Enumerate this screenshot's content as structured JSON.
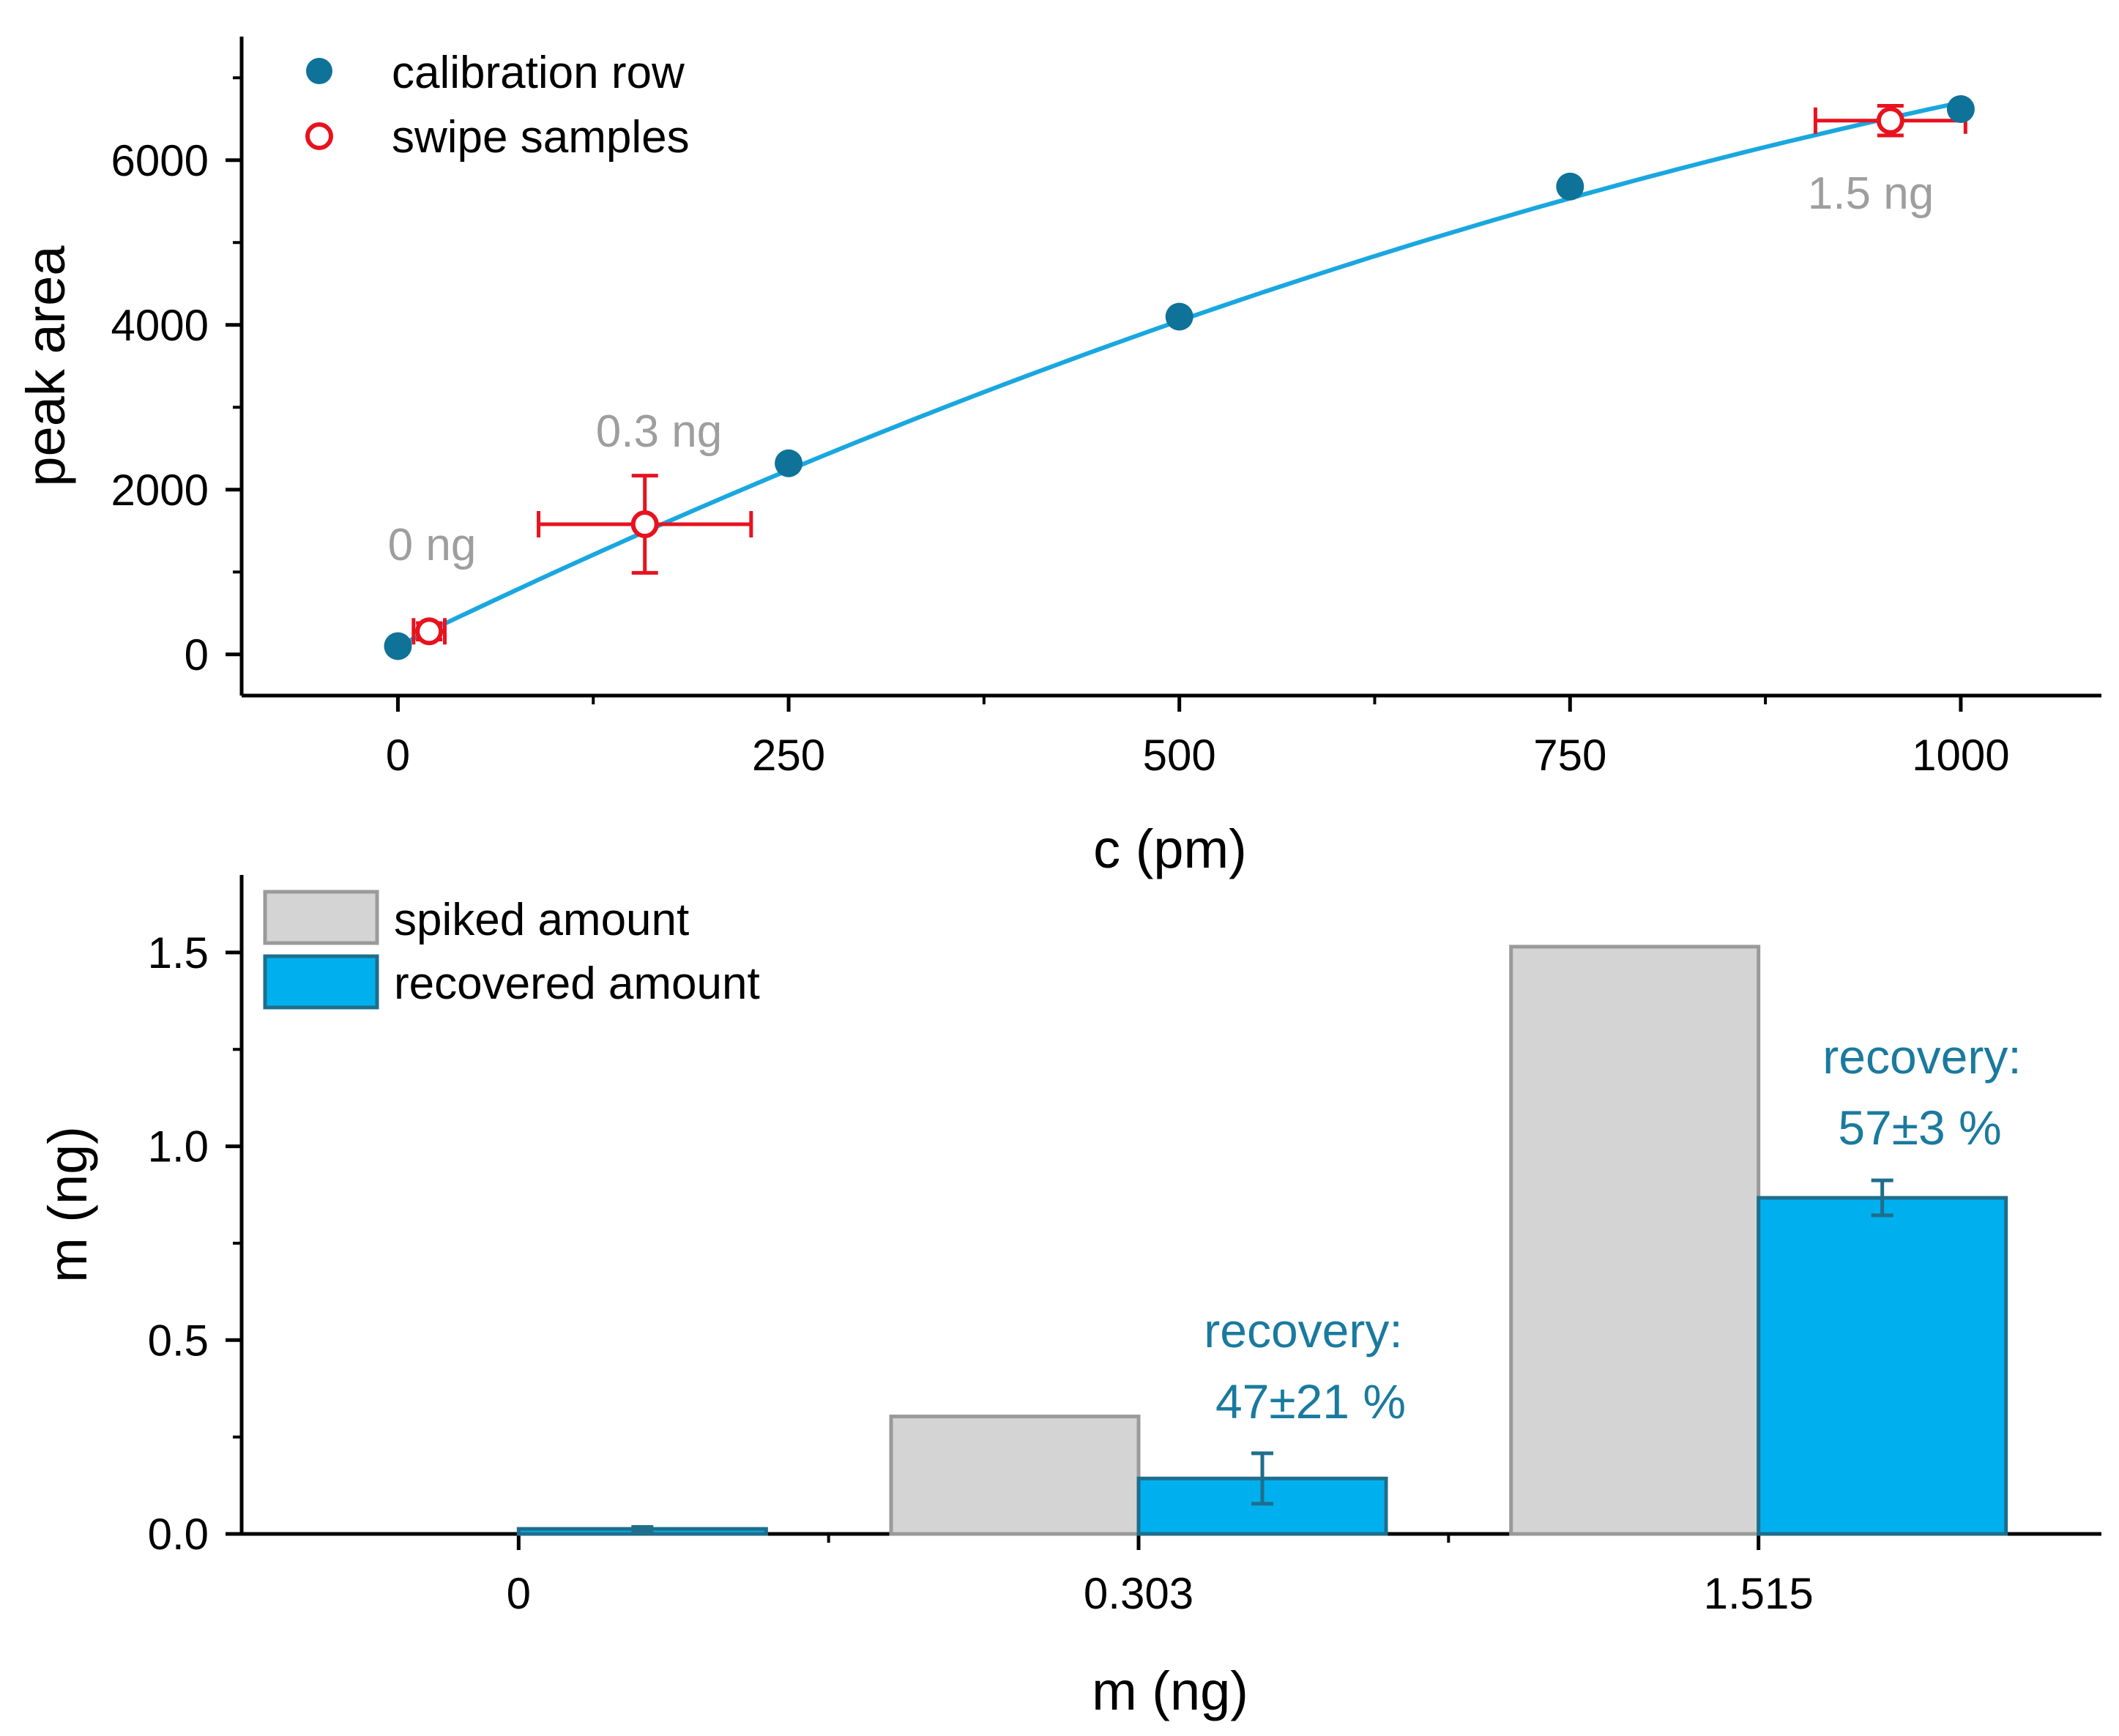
{
  "colors": {
    "calibration": "#0f7298",
    "fit_line": "#1aa7e0",
    "swipe": "#e8121f",
    "spiked_fill": "#d4d4d4",
    "spiked_edge": "#9a9a9a",
    "recovered_fill": "#00b0ee",
    "recovered_edge": "#1f6e8c",
    "annotation_gray": "#9e9e9e",
    "annotation_teal": "#1a7a9e"
  },
  "chart_data": [
    {
      "type": "scatter",
      "xlabel": "c (pm)",
      "ylabel": "peak area",
      "xlim": [
        -100,
        1090
      ],
      "ylim": [
        -500,
        7500
      ],
      "x_ticks": [
        0,
        250,
        500,
        750,
        1000
      ],
      "y_ticks": [
        0,
        2000,
        4000,
        6000
      ],
      "legend_position": "top-left",
      "legend": [
        {
          "label": "calibration row",
          "marker": "filled-circle"
        },
        {
          "label": "swipe samples",
          "marker": "open-circle"
        }
      ],
      "series": [
        {
          "name": "calibration row",
          "points": [
            [
              0,
              100
            ],
            [
              250,
              2320
            ],
            [
              500,
              4100
            ],
            [
              750,
              5680
            ],
            [
              1000,
              6620
            ]
          ]
        },
        {
          "name": "swipe samples",
          "points": [
            {
              "x": 20,
              "y": 280,
              "xerr": 10,
              "yerr": 100,
              "label": "0 ng"
            },
            {
              "x": 158,
              "y": 1580,
              "xerr": 68,
              "yerr": 590,
              "label": "0.3 ng"
            },
            {
              "x": 955,
              "y": 6480,
              "xerr": 48,
              "yerr": 180,
              "label": "1.5 ng"
            }
          ]
        }
      ],
      "fit": {
        "type": "quadratic",
        "coefficients": [
          100,
          9.2,
          -0.0026
        ]
      }
    },
    {
      "type": "bar",
      "xlabel": "m (ng)",
      "ylabel": "m (ng)",
      "categories": [
        "0",
        "0.303",
        "1.515"
      ],
      "ylim": [
        0,
        1.7
      ],
      "y_ticks": [
        "0.0",
        "0.5",
        "1.0",
        "1.5"
      ],
      "legend_position": "top-left",
      "series": [
        {
          "name": "spiked amount",
          "values": [
            0,
            0.303,
            1.515
          ]
        },
        {
          "name": "recovered amount",
          "values": [
            0.013,
            0.143,
            0.867
          ],
          "errors": [
            0.005,
            0.065,
            0.045
          ]
        }
      ],
      "annotations": [
        {
          "category": "0.303",
          "lines": [
            "recovery:",
            "47±21 %"
          ]
        },
        {
          "category": "1.515",
          "lines": [
            "recovery:",
            "57±3 %"
          ]
        }
      ]
    }
  ]
}
